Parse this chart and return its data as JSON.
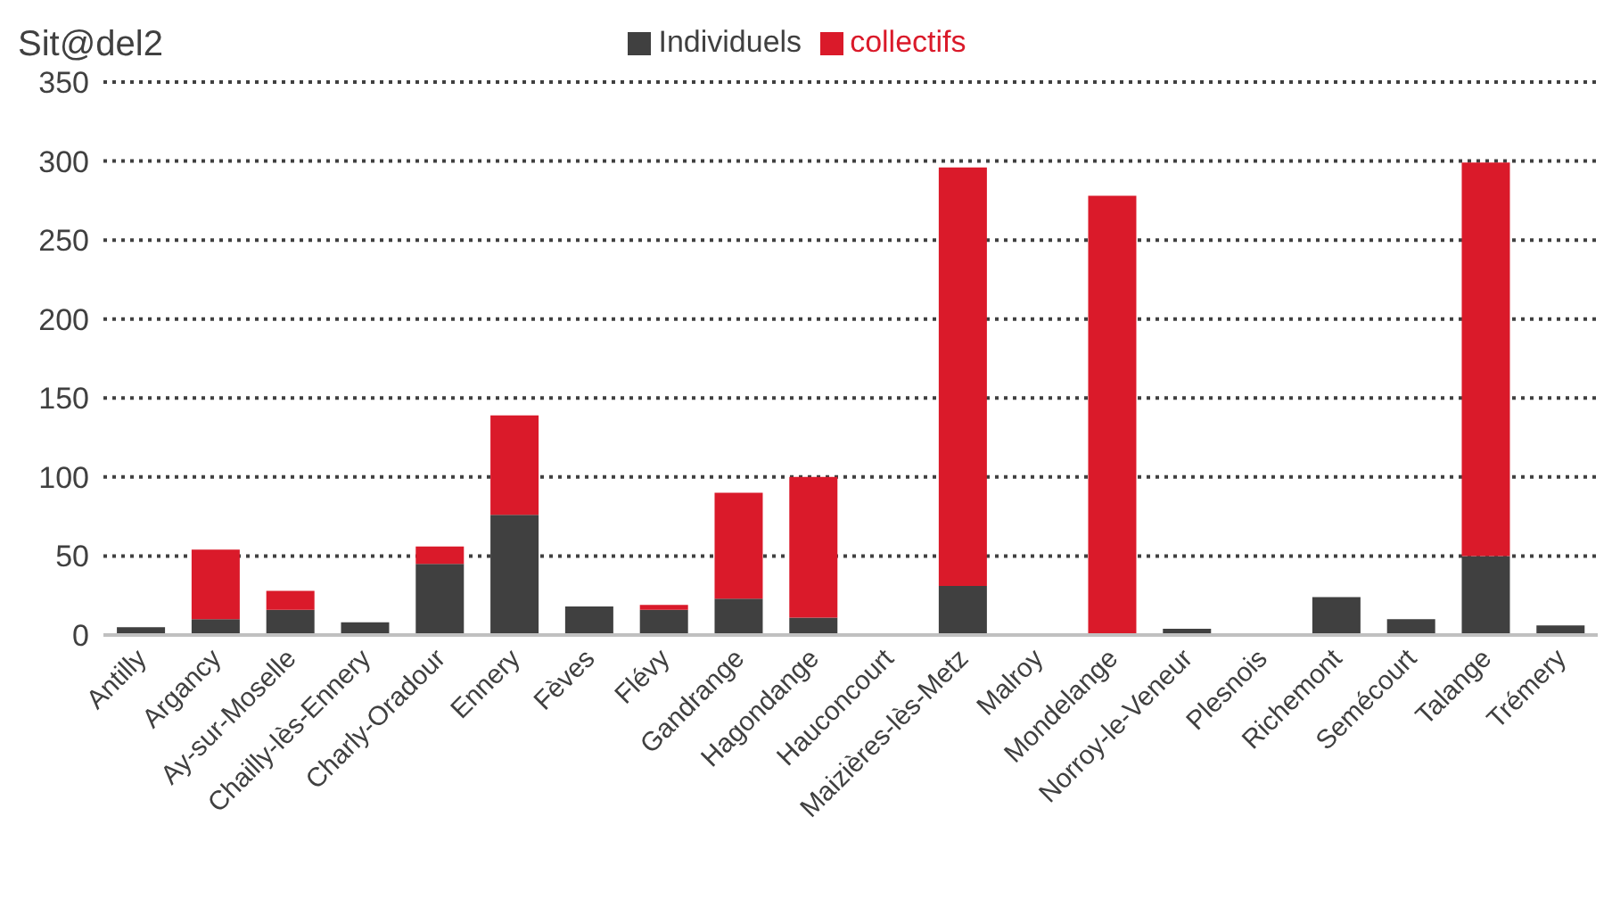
{
  "chart_data": {
    "type": "bar",
    "stacked": true,
    "categories": [
      "Antilly",
      "Argancy",
      "Ay-sur-Moselle",
      "Chailly-lès-Ennery",
      "Charly-Oradour",
      "Ennery",
      "Fèves",
      "Flévy",
      "Gandrange",
      "Hagondange",
      "Hauconcourt",
      "Maizières-lès-Metz",
      "Malroy",
      "Mondelange",
      "Norroy-le-Veneur",
      "Plesnois",
      "Richemont",
      "Semécourt",
      "Talange",
      "Trémery"
    ],
    "series": [
      {
        "name": "Individuels",
        "color": "#404040",
        "values": [
          5,
          10,
          16,
          8,
          45,
          76,
          18,
          16,
          23,
          11,
          0,
          31,
          0,
          null,
          4,
          0,
          24,
          10,
          50,
          6
        ]
      },
      {
        "name": "collectifs",
        "color": "#da1a2a",
        "values": [
          0,
          44,
          12,
          0,
          11,
          63,
          0,
          3,
          67,
          89,
          0,
          265,
          0,
          278,
          0,
          0,
          0,
          0,
          249,
          0
        ]
      }
    ],
    "ylim": [
      0,
      350
    ],
    "yticks": [
      0,
      50,
      100,
      150,
      200,
      250,
      300,
      350
    ],
    "grid": "y",
    "legend": "top",
    "annotations": [
      "Sit@del2"
    ]
  }
}
